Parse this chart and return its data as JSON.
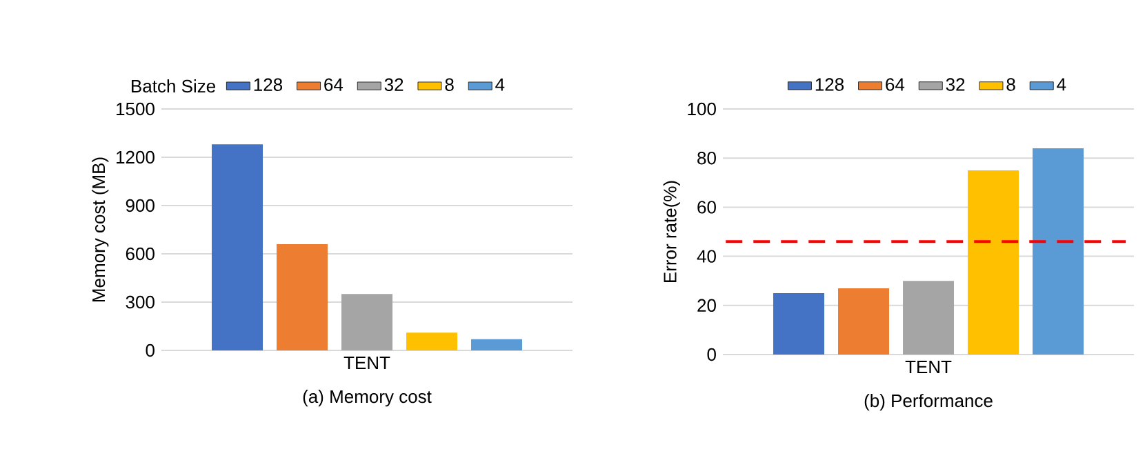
{
  "chart_data": [
    {
      "type": "bar",
      "title": "(a) Memory cost",
      "ylabel": "Memory cost (MB)",
      "categories": [
        "TENT"
      ],
      "legend_title": "Batch Size",
      "series": [
        {
          "name": "128",
          "color": "#4472c4",
          "values": [
            1280
          ]
        },
        {
          "name": "64",
          "color": "#ed7d31",
          "values": [
            660
          ]
        },
        {
          "name": "32",
          "color": "#a5a5a5",
          "values": [
            350
          ]
        },
        {
          "name": "8",
          "color": "#ffc000",
          "values": [
            110
          ]
        },
        {
          "name": "4",
          "color": "#5b9bd5",
          "values": [
            70
          ]
        }
      ],
      "ylim": [
        0,
        1500
      ],
      "yticks": [
        0,
        300,
        600,
        900,
        1200,
        1500
      ],
      "grid": "y",
      "legend": "top"
    },
    {
      "type": "bar",
      "title": "(b) Performance",
      "ylabel": "Error rate(%)",
      "categories": [
        "TENT"
      ],
      "series": [
        {
          "name": "128",
          "color": "#4472c4",
          "values": [
            25
          ]
        },
        {
          "name": "64",
          "color": "#ed7d31",
          "values": [
            27
          ]
        },
        {
          "name": "32",
          "color": "#a5a5a5",
          "values": [
            30
          ]
        },
        {
          "name": "8",
          "color": "#ffc000",
          "values": [
            75
          ]
        },
        {
          "name": "4",
          "color": "#5b9bd5",
          "values": [
            84
          ]
        }
      ],
      "ylim": [
        0,
        100
      ],
      "yticks": [
        0,
        20,
        40,
        60,
        80,
        100
      ],
      "grid": "y",
      "legend": "top",
      "ref_lines": [
        {
          "axis": "y",
          "value": 46,
          "color": "#ff0000",
          "line_style": "dashed"
        }
      ]
    }
  ]
}
